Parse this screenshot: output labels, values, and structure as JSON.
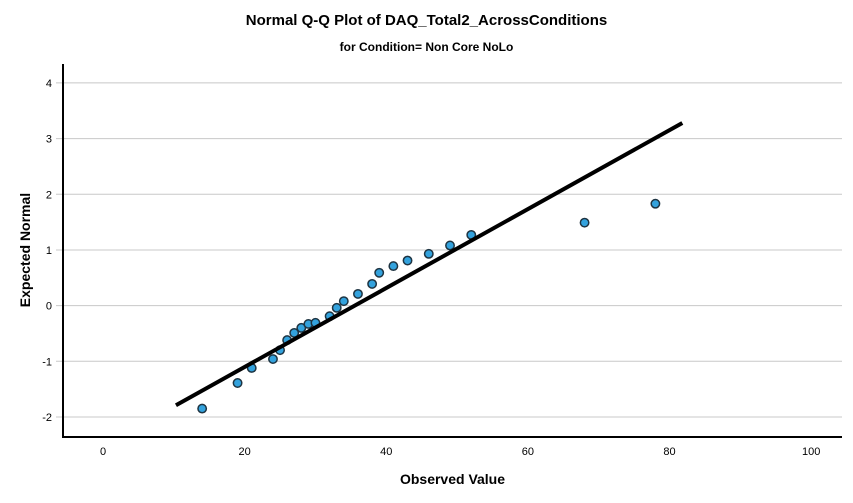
{
  "colors": {
    "background": "#FFFFFF",
    "text": "#000000",
    "axis_line": "#000000",
    "gridline": "#C8C8C8",
    "marker_fill": "#33A2DD",
    "marker_stroke": "#1E3442",
    "reference_line": "#000000"
  },
  "chart_data": {
    "type": "scatter",
    "title": "Normal Q-Q Plot of DAQ_Total2_AcrossConditions",
    "subtitle": "for Condition= Non Core NoLo",
    "xlabel": "Observed Value",
    "ylabel": "Expected Normal",
    "xlim": [
      -5.65,
      104.35
    ],
    "ylim": [
      -2.36,
      4.34
    ],
    "x_ticks": [
      0,
      20,
      40,
      60,
      80,
      100
    ],
    "y_ticks": [
      -2,
      -1,
      0,
      1,
      2,
      3,
      4
    ],
    "grid": "horizontal",
    "legend": "none",
    "series": [
      {
        "name": "observed-vs-expected-points",
        "type": "scatter",
        "points": [
          [
            14,
            -1.85
          ],
          [
            19,
            -1.39
          ],
          [
            21,
            -1.12
          ],
          [
            24,
            -0.96
          ],
          [
            25,
            -0.8
          ],
          [
            26,
            -0.62
          ],
          [
            27,
            -0.49
          ],
          [
            28,
            -0.4
          ],
          [
            29,
            -0.33
          ],
          [
            30,
            -0.31
          ],
          [
            32,
            -0.19
          ],
          [
            33,
            -0.04
          ],
          [
            34,
            0.08
          ],
          [
            36,
            0.21
          ],
          [
            38,
            0.39
          ],
          [
            39,
            0.59
          ],
          [
            41,
            0.71
          ],
          [
            43,
            0.81
          ],
          [
            46,
            0.93
          ],
          [
            49,
            1.08
          ],
          [
            52,
            1.27
          ],
          [
            68,
            1.49
          ],
          [
            78,
            1.83
          ]
        ]
      },
      {
        "name": "normal-reference-line",
        "type": "line",
        "points": [
          [
            10.3,
            -1.79
          ],
          [
            81.8,
            3.28
          ]
        ]
      }
    ]
  }
}
